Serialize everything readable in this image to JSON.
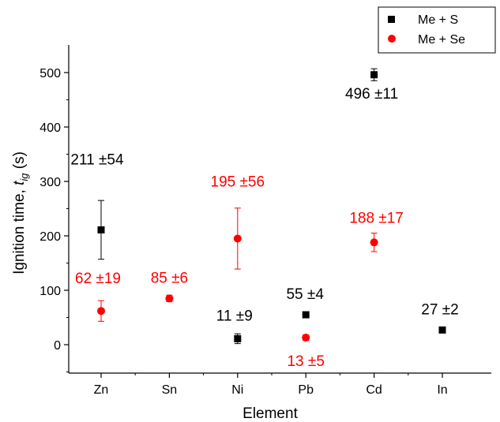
{
  "chart_data": {
    "type": "scatter",
    "title": "",
    "xlabel": "Element",
    "ylabel_main": "Ignition time, ",
    "ylabel_symbol": "t",
    "ylabel_subscript": "ig",
    "ylabel_unit": " (s)",
    "categories": [
      "Zn",
      "Sn",
      "Ni",
      "Pb",
      "Cd",
      "In"
    ],
    "ylim": [
      -60,
      550
    ],
    "yticks": [
      0,
      100,
      200,
      300,
      400,
      500
    ],
    "grid": false,
    "legend_position": "top-right",
    "series": [
      {
        "name": "Me + S",
        "marker": "square",
        "color": "#000000",
        "points": [
          {
            "category": "Zn",
            "y": 211,
            "err": 54,
            "label": "211 ±54"
          },
          {
            "category": "Ni",
            "y": 11,
            "err": 9,
            "label": "11 ±9"
          },
          {
            "category": "Pb",
            "y": 55,
            "err": 4,
            "label": "55 ±4"
          },
          {
            "category": "Cd",
            "y": 496,
            "err": 11,
            "label": "496 ±11"
          },
          {
            "category": "In",
            "y": 27,
            "err": 2,
            "label": "27 ±2"
          }
        ]
      },
      {
        "name": "Me + Se",
        "marker": "circle",
        "color": "#ff0000",
        "points": [
          {
            "category": "Zn",
            "y": 62,
            "err": 19,
            "label": "62 ±19"
          },
          {
            "category": "Sn",
            "y": 85,
            "err": 6,
            "label": "85 ±6"
          },
          {
            "category": "Ni",
            "y": 195,
            "err": 56,
            "label": "195 ±56"
          },
          {
            "category": "Pb",
            "y": 13,
            "err": 5,
            "label": "13 ±5"
          },
          {
            "category": "Cd",
            "y": 188,
            "err": 17,
            "label": "188 ±17"
          }
        ]
      }
    ]
  }
}
